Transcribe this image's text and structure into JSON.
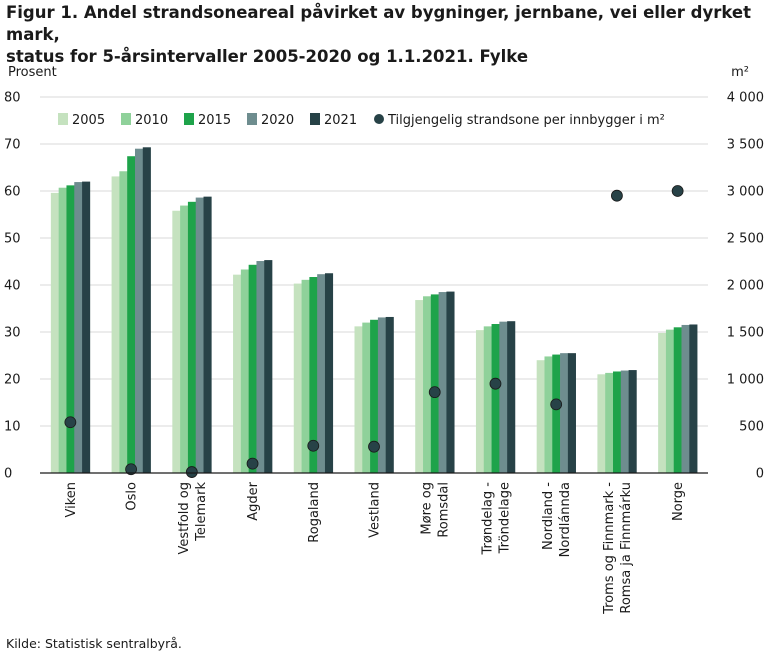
{
  "title_line1": "Figur 1. Andel strandsoneareal påvirket av bygninger, jernbane, vei eller dyrket mark,",
  "title_line2": "status for 5-årsintervaller 2005-2020 og 1.1.2021. Fylke",
  "source": "Kilde: Statistisk sentralbyrå.",
  "colors": {
    "2005": "#c5e2bf",
    "2010": "#8fd19a",
    "2015": "#1ea34a",
    "2020": "#6e8d8f",
    "2021": "#274247",
    "dot": "#274247",
    "grid": "#d9d9d9"
  },
  "chart_data": {
    "type": "bar",
    "title": "Figur 1. Andel strandsoneareal påvirket av bygninger, jernbane, vei eller dyrket mark, status for 5-årsintervaller 2005-2020 og 1.1.2021. Fylke",
    "ylabel_left": "Prosent",
    "ylabel_right": "m²",
    "ylim_left": [
      0,
      80
    ],
    "ylim_right": [
      0,
      4000
    ],
    "yticks_left": [
      "0",
      "10",
      "20",
      "30",
      "40",
      "50",
      "60",
      "70",
      "80"
    ],
    "yticks_right": [
      "0",
      "500",
      "1 000",
      "1 500",
      "2 000",
      "2 500",
      "3 000",
      "3 500",
      "4 000"
    ],
    "grid": true,
    "legend_position": "top",
    "categories": [
      [
        "Viken"
      ],
      [
        "Oslo"
      ],
      [
        "Vestfold og",
        "Telemark"
      ],
      [
        "Agder"
      ],
      [
        "Rogaland"
      ],
      [
        "Vestland"
      ],
      [
        "Møre og",
        "Romsdal"
      ],
      [
        "Trøndelag -",
        "Tröndelage"
      ],
      [
        "Nordland -",
        "Nordlánnda"
      ],
      [
        "Troms og Finnmark -",
        "Romsa ja Finnmárku"
      ],
      [
        "Norge"
      ]
    ],
    "series": [
      {
        "name": "2005",
        "values": [
          59.6,
          63.1,
          55.8,
          42.2,
          40.3,
          31.2,
          36.8,
          30.4,
          24.0,
          21.0,
          29.8
        ]
      },
      {
        "name": "2010",
        "values": [
          60.7,
          64.2,
          56.9,
          43.3,
          41.1,
          32.0,
          37.6,
          31.2,
          24.8,
          21.3,
          30.5
        ]
      },
      {
        "name": "2015",
        "values": [
          61.2,
          67.4,
          57.7,
          44.3,
          41.7,
          32.6,
          38.0,
          31.7,
          25.2,
          21.6,
          31.0
        ]
      },
      {
        "name": "2020",
        "values": [
          61.9,
          69.0,
          58.6,
          45.1,
          42.3,
          33.1,
          38.5,
          32.2,
          25.5,
          21.8,
          31.5
        ]
      },
      {
        "name": "2021",
        "values": [
          62.0,
          69.3,
          58.8,
          45.3,
          42.5,
          33.2,
          38.6,
          32.3,
          25.5,
          21.9,
          31.6
        ]
      }
    ],
    "dot_series": {
      "name": "Tilgjengelig strandsone per innbygger i m²",
      "axis": "right",
      "values": [
        540,
        40,
        10,
        100,
        290,
        280,
        860,
        950,
        730,
        2950,
        3000
      ]
    }
  }
}
